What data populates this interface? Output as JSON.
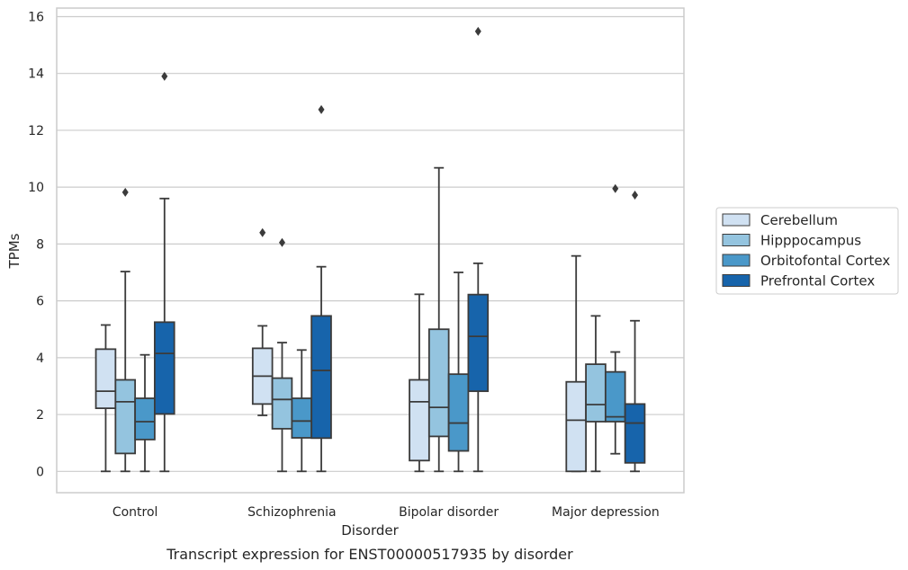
{
  "chart_data": {
    "type": "box",
    "caption": "Transcript expression for ENST00000517935 by disorder",
    "xlabel": "Disorder",
    "ylabel": "TPMs",
    "ylim": [
      -0.75,
      16.3
    ],
    "yticks": [
      0,
      2,
      4,
      6,
      8,
      10,
      12,
      14,
      16
    ],
    "grid": true,
    "legend_position": "right",
    "categories": [
      "Control",
      "Schizophrenia",
      "Bipolar disorder",
      "Major depression"
    ],
    "series": [
      {
        "name": "Cerebellum",
        "color": "#d0e1f2",
        "boxes": [
          {
            "whisker_low": 0,
            "q1": 2.22,
            "median": 2.82,
            "q3": 4.3,
            "whisker_high": 5.15,
            "outliers": []
          },
          {
            "whisker_low": 1.97,
            "q1": 2.37,
            "median": 3.35,
            "q3": 4.33,
            "whisker_high": 5.12,
            "outliers": [
              8.4
            ]
          },
          {
            "whisker_low": 0,
            "q1": 0.38,
            "median": 2.45,
            "q3": 3.22,
            "whisker_high": 6.23,
            "outliers": []
          },
          {
            "whisker_low": 0,
            "q1": 0,
            "median": 1.8,
            "q3": 3.15,
            "whisker_high": 7.58,
            "outliers": []
          }
        ]
      },
      {
        "name": "Hipppocampus",
        "color": "#94c4df",
        "boxes": [
          {
            "whisker_low": 0,
            "q1": 0.63,
            "median": 2.45,
            "q3": 3.22,
            "whisker_high": 7.03,
            "outliers": [
              9.82
            ]
          },
          {
            "whisker_low": 0,
            "q1": 1.5,
            "median": 2.53,
            "q3": 3.28,
            "whisker_high": 4.53,
            "outliers": [
              8.05
            ]
          },
          {
            "whisker_low": 0,
            "q1": 1.23,
            "median": 2.25,
            "q3": 5.0,
            "whisker_high": 10.68,
            "outliers": []
          },
          {
            "whisker_low": 0,
            "q1": 1.75,
            "median": 2.35,
            "q3": 3.77,
            "whisker_high": 5.47,
            "outliers": []
          }
        ]
      },
      {
        "name": "Orbitofontal Cortex",
        "color": "#4a98c9",
        "boxes": [
          {
            "whisker_low": 0,
            "q1": 1.12,
            "median": 1.75,
            "q3": 2.57,
            "whisker_high": 4.1,
            "outliers": []
          },
          {
            "whisker_low": 0,
            "q1": 1.18,
            "median": 1.77,
            "q3": 2.57,
            "whisker_high": 4.27,
            "outliers": []
          },
          {
            "whisker_low": 0,
            "q1": 0.72,
            "median": 1.7,
            "q3": 3.42,
            "whisker_high": 7.0,
            "outliers": []
          },
          {
            "whisker_low": 0.62,
            "q1": 1.75,
            "median": 1.92,
            "q3": 3.5,
            "whisker_high": 4.2,
            "outliers": [
              9.95
            ]
          }
        ]
      },
      {
        "name": "Prefrontal Cortex",
        "color": "#1764ab",
        "boxes": [
          {
            "whisker_low": 0,
            "q1": 2.02,
            "median": 4.15,
            "q3": 5.25,
            "whisker_high": 9.6,
            "outliers": [
              13.9
            ]
          },
          {
            "whisker_low": 0,
            "q1": 1.17,
            "median": 3.55,
            "q3": 5.47,
            "whisker_high": 7.2,
            "outliers": [
              12.73
            ]
          },
          {
            "whisker_low": 0,
            "q1": 2.82,
            "median": 4.75,
            "q3": 6.22,
            "whisker_high": 7.32,
            "outliers": [
              15.48
            ]
          },
          {
            "whisker_low": 0,
            "q1": 0.3,
            "median": 1.7,
            "q3": 2.37,
            "whisker_high": 5.3,
            "outliers": [
              9.72
            ]
          }
        ]
      }
    ]
  }
}
